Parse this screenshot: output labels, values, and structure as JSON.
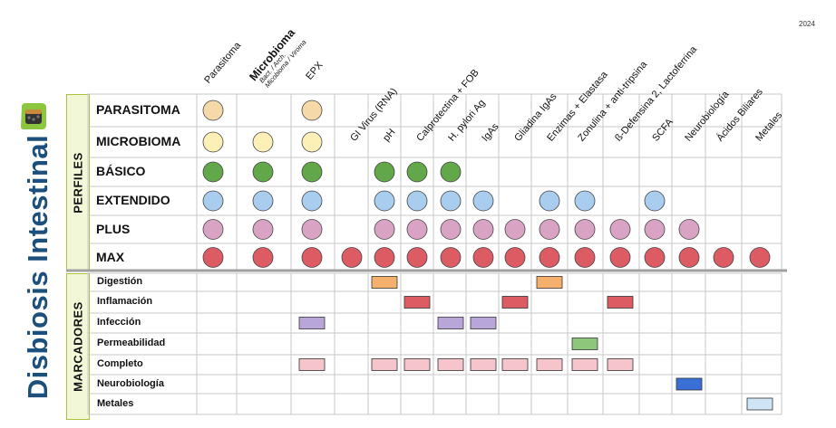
{
  "title": "Disbiosis Intestinal",
  "year": "2024",
  "groups": {
    "perfiles": "PERFILES",
    "marcadores": "MARCADORES"
  },
  "columns": [
    "Parasitoma",
    "Microbioma",
    "EPX",
    "",
    "GI Virus (RNA)",
    "pH",
    "Calprotectina + FOB",
    "H. pylori Ag",
    "IgAs",
    "Gliadina IgAs",
    "Enzimas + Elastasa",
    "Zonulina + anti-tripsina",
    "ß-Defensina 2, Lactoferrina",
    "SCFA",
    "Neurobiología",
    "Ácidos Biliares",
    "Metales"
  ],
  "microbioma_sub": [
    "Bact. / Arch.",
    "Micobioma / Viroma"
  ],
  "profiles": [
    {
      "label": "PARASITOMA",
      "color": "#f6d9a8",
      "cols": [
        0,
        2
      ]
    },
    {
      "label": "MICROBIOMA",
      "color": "#fdf0b6",
      "cols": [
        0,
        1,
        2
      ]
    },
    {
      "label": "BÁSICO",
      "color": "#62a84a",
      "cols": [
        0,
        1,
        2,
        4,
        5,
        6
      ]
    },
    {
      "label": "EXTENDIDO",
      "color": "#a9cdee",
      "cols": [
        0,
        1,
        2,
        4,
        5,
        6,
        7,
        9,
        10,
        12
      ]
    },
    {
      "label": "PLUS",
      "color": "#d9a4c4",
      "cols": [
        0,
        1,
        2,
        4,
        5,
        6,
        7,
        8,
        9,
        10,
        11,
        12,
        13
      ]
    },
    {
      "label": "MAX",
      "color": "#dd5b62",
      "cols": [
        0,
        1,
        2,
        3,
        4,
        5,
        6,
        7,
        8,
        9,
        10,
        11,
        12,
        13,
        14,
        15
      ]
    }
  ],
  "markers": [
    {
      "label": "Digestión",
      "color": "#f4b06c",
      "cols": [
        4,
        9
      ]
    },
    {
      "label": "Inflamación",
      "color": "#dd5b62",
      "cols": [
        5,
        8,
        11
      ]
    },
    {
      "label": "Infección",
      "color": "#b9a6d9",
      "cols": [
        2,
        6,
        7
      ]
    },
    {
      "label": "Permeabilidad",
      "color": "#8dc77b",
      "cols": [
        10
      ]
    },
    {
      "label": "Completo",
      "color": "#f6c5cb",
      "cols": [
        2,
        4,
        5,
        6,
        7,
        8,
        9,
        10,
        11
      ]
    },
    {
      "label": "Neurobiología",
      "color": "#3a6fd6",
      "cols": [
        13
      ]
    },
    {
      "label": "Metales",
      "color": "#cfe4f5",
      "cols": [
        15
      ]
    }
  ],
  "icons": {
    "logo": "gut-microbiome-logo-icon",
    "circle": "circle-marker-icon",
    "rect": "rect-marker-icon"
  }
}
